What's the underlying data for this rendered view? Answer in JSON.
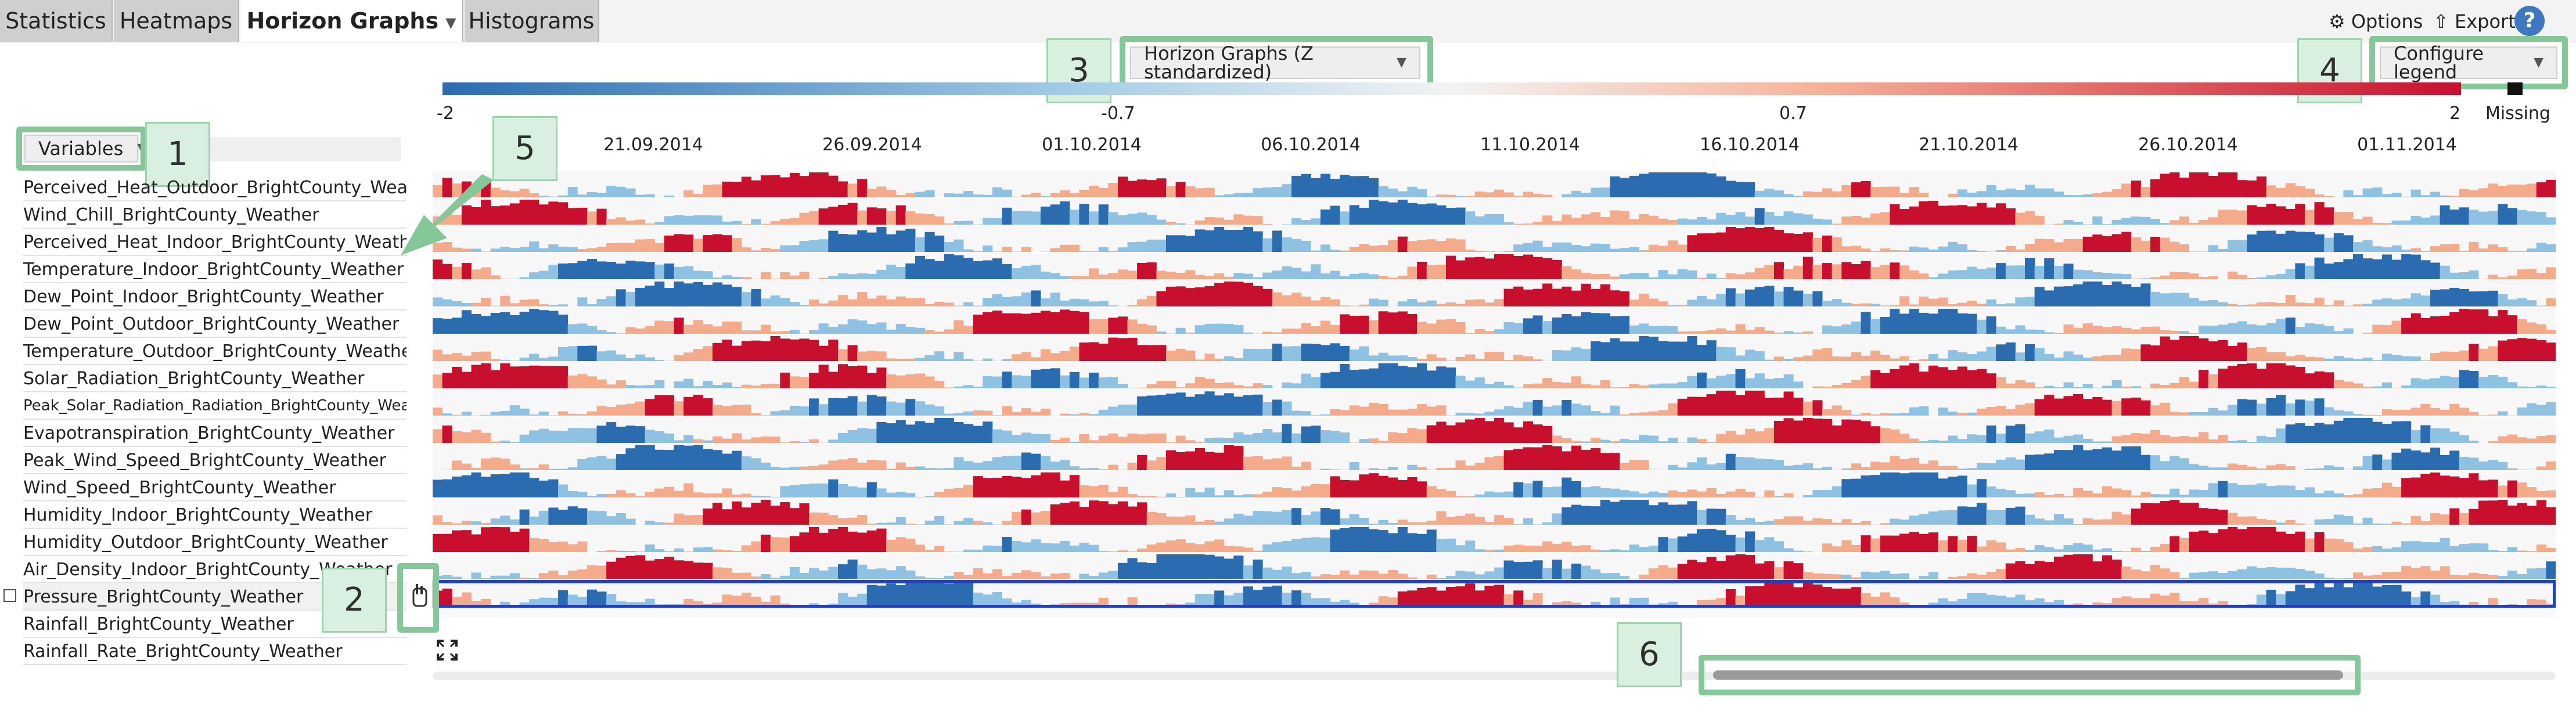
{
  "tabs": [
    {
      "label": "Statistics",
      "active": false
    },
    {
      "label": "Heatmaps",
      "active": false
    },
    {
      "label": "Horizon Graphs",
      "active": true
    },
    {
      "label": "Histograms",
      "active": false
    }
  ],
  "toolbar": {
    "options_label": "Options",
    "export_label": "Export",
    "help_label": "?"
  },
  "view_select": {
    "value": "Horizon Graphs (Z standardized)"
  },
  "legend_button": {
    "label": "Configure legend"
  },
  "variables_button": {
    "label": "Variables"
  },
  "legend": {
    "ticks": [
      "-2",
      "-0.7",
      "0.7",
      "2"
    ],
    "missing_label": "Missing",
    "colors": [
      "#2b6cb0",
      "#8fc1e3",
      "#f4ab8c",
      "#c8102e"
    ]
  },
  "variables": [
    "Perceived_Heat_Outdoor_BrightCounty_Weather",
    "Wind_Chill_BrightCounty_Weather",
    "Perceived_Heat_Indoor_BrightCounty_Weather",
    "Temperature_Indoor_BrightCounty_Weather",
    "Dew_Point_Indoor_BrightCounty_Weather",
    "Dew_Point_Outdoor_BrightCounty_Weather",
    "Temperature_Outdoor_BrightCounty_Weather",
    "Solar_Radiation_BrightCounty_Weather",
    "Peak_Solar_Radiation_Radiation_BrightCounty_Weather",
    "Evapotranspiration_BrightCounty_Weather",
    "Peak_Wind_Speed_BrightCounty_Weather",
    "Wind_Speed_BrightCounty_Weather",
    "Humidity_Indoor_BrightCounty_Weather",
    "Humidity_Outdoor_BrightCounty_Weather",
    "Air_Density_Indoor_BrightCounty_Weather",
    "Pressure_BrightCounty_Weather",
    "Rainfall_BrightCounty_Weather",
    "Rainfall_Rate_BrightCounty_Weather"
  ],
  "selected_variable": "Pressure_BrightCounty_Weather",
  "callouts": [
    "1",
    "2",
    "3",
    "4",
    "5",
    "6"
  ],
  "chart_data": {
    "type": "horizon",
    "x_labels": [
      "21.09.2014",
      "26.09.2014",
      "01.10.2014",
      "06.10.2014",
      "11.10.2014",
      "16.10.2014",
      "21.10.2014",
      "26.10.2014",
      "01.11.2014"
    ],
    "x_range": [
      "17.09.2014",
      "04.11.2014"
    ],
    "legend_range": [
      -2,
      2
    ],
    "rows_with_data": 16,
    "rows_missing": [
      "Rainfall_BrightCounty_Weather",
      "Rainfall_Rate_BrightCounty_Weather"
    ]
  }
}
